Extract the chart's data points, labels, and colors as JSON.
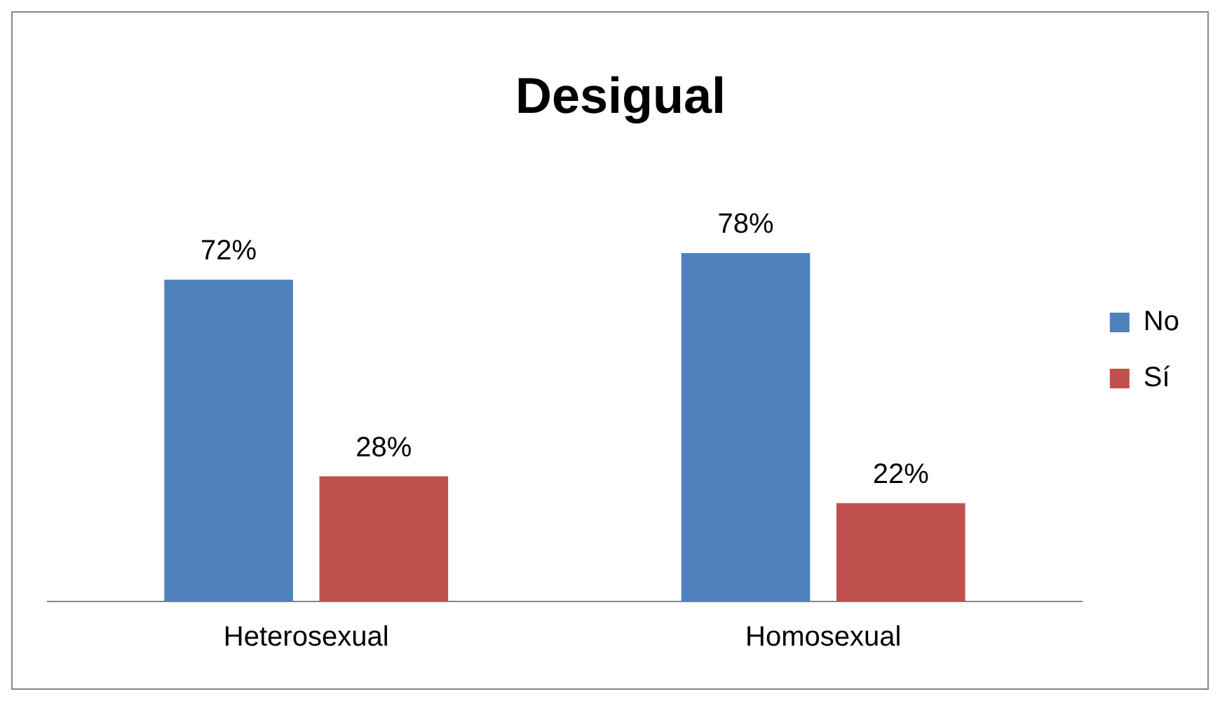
{
  "chart_data": {
    "type": "bar",
    "title": "Desigual",
    "categories": [
      "Heterosexual",
      "Homosexual"
    ],
    "series": [
      {
        "name": "No",
        "color": "#4f81bd",
        "values": [
          72,
          78
        ],
        "value_labels": [
          "72%",
          "78%"
        ]
      },
      {
        "name": "Sí",
        "color": "#c0504d",
        "values": [
          28,
          22
        ],
        "value_labels": [
          "28%",
          "22%"
        ]
      }
    ],
    "legend": "right",
    "grid": false
  }
}
